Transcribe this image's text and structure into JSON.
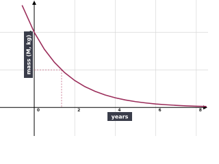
{
  "chart_data": {
    "type": "line",
    "x_label": "years",
    "y_label": "mass (M, kg)",
    "x": [
      -0.6,
      0,
      0.5,
      1,
      1.5,
      2,
      2.5,
      3,
      3.5,
      4,
      4.5,
      5,
      5.5,
      6,
      6.5,
      7,
      7.5,
      8,
      8.5
    ],
    "series": [
      {
        "color": "#9b2d5a",
        "values": [
          1.36,
          1,
          0.774,
          0.599,
          0.463,
          0.358,
          0.277,
          0.215,
          0.166,
          0.128,
          0.099,
          0.077,
          0.06,
          0.046,
          0.036,
          0.028,
          0.021,
          0.016,
          0.013
        ]
      }
    ],
    "guide": [
      1.35,
      0.5
    ],
    "xlim": [
      -1.69,
      8.58
    ],
    "ylim": [
      -0.38,
      1.43
    ],
    "xticks": [
      0,
      2,
      4,
      6,
      8
    ],
    "yticks": [
      0.5,
      1
    ],
    "grid": true
  }
}
